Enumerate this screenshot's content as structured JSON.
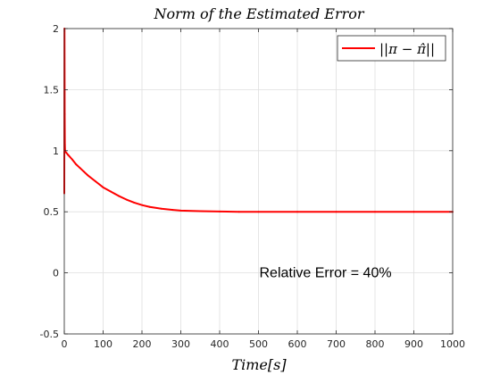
{
  "chart_data": {
    "type": "line",
    "title": "Norm of the Estimated Error",
    "xlabel": "Time[s]",
    "ylabel": "",
    "xlim": [
      0,
      1000
    ],
    "ylim": [
      -0.5,
      2
    ],
    "x_ticks": [
      "0",
      "100",
      "200",
      "300",
      "400",
      "500",
      "600",
      "700",
      "800",
      "900",
      "1000"
    ],
    "y_ticks": [
      "-0.5",
      "0",
      "0.5",
      "1",
      "1.5",
      "2"
    ],
    "grid": true,
    "legend_position": "top-right",
    "series": [
      {
        "name": "||π − π̂||",
        "color": "#ff0000",
        "x": [
          0,
          0.5,
          1,
          1.5,
          2,
          3,
          5,
          10,
          20,
          30,
          40,
          50,
          60,
          80,
          100,
          120,
          140,
          160,
          180,
          200,
          220,
          250,
          280,
          300,
          350,
          400,
          450,
          500,
          600,
          700,
          800,
          900,
          1000
        ],
        "y": [
          0.65,
          2.0,
          1.3,
          1.05,
          1.0,
          0.99,
          0.985,
          0.965,
          0.93,
          0.89,
          0.86,
          0.83,
          0.8,
          0.75,
          0.7,
          0.665,
          0.63,
          0.6,
          0.575,
          0.555,
          0.54,
          0.525,
          0.515,
          0.51,
          0.505,
          0.502,
          0.5,
          0.5,
          0.5,
          0.5,
          0.5,
          0.5,
          0.5
        ]
      }
    ],
    "annotations": [
      {
        "text": "Relative Error  = 40%",
        "x": 500,
        "y": 0
      }
    ]
  }
}
